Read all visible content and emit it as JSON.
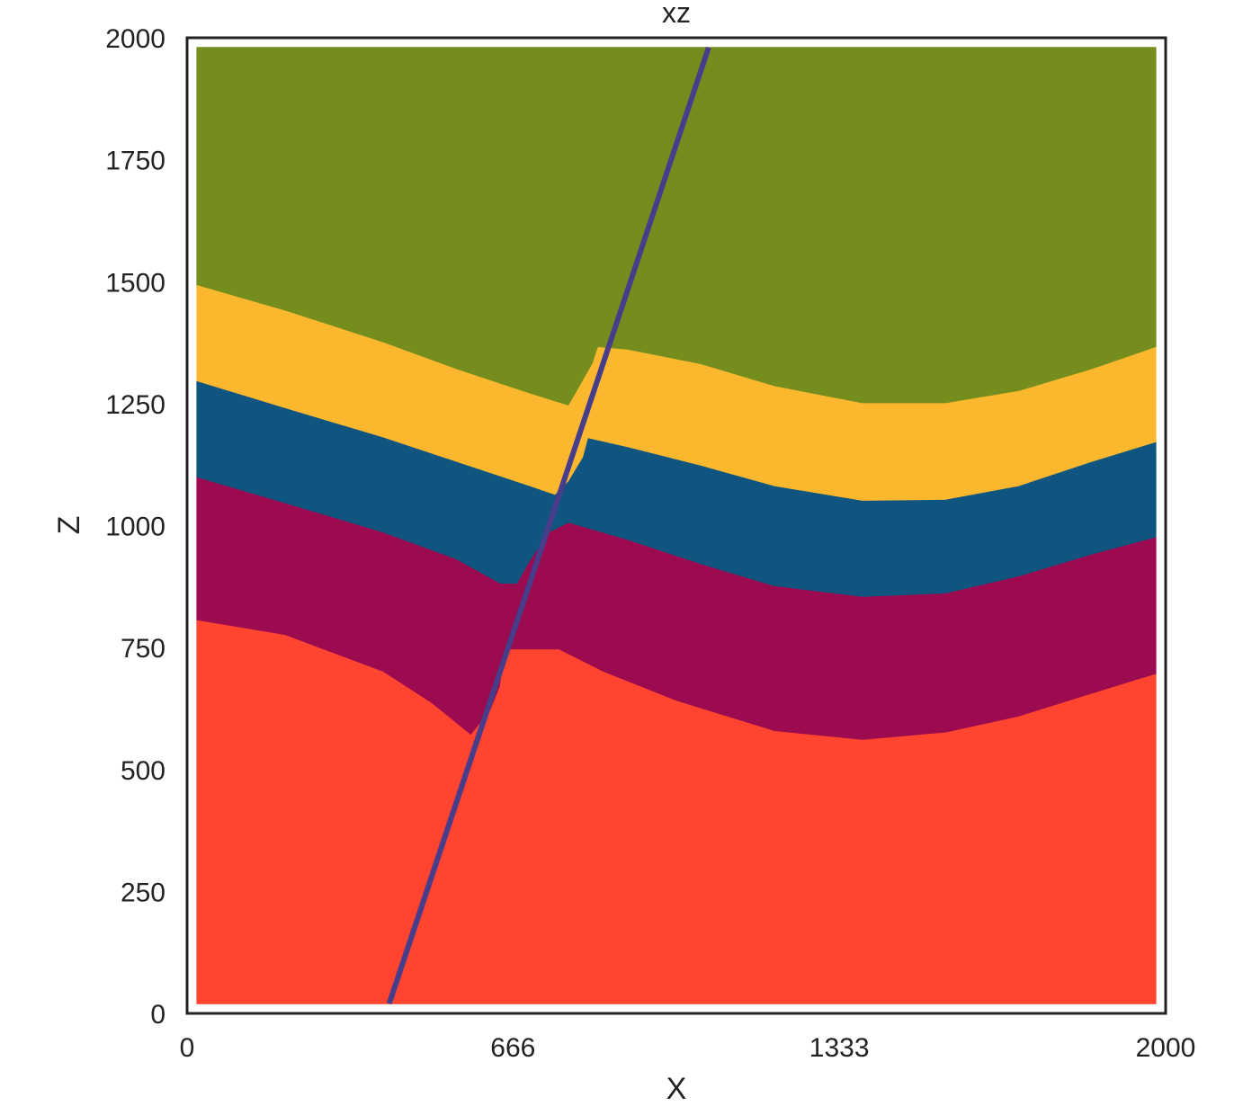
{
  "chart_data": {
    "type": "area",
    "title": "xz",
    "xlabel": "X",
    "ylabel": "Z",
    "xlim": [
      0,
      2000
    ],
    "ylim": [
      0,
      2000
    ],
    "xticks": [
      0,
      666,
      1333,
      2000
    ],
    "xtick_labels": [
      "0",
      "666",
      "1333",
      "2000"
    ],
    "yticks": [
      0,
      250,
      500,
      750,
      1000,
      1250,
      1500,
      1750,
      2000
    ],
    "ytick_labels": [
      "0",
      "250",
      "500",
      "750",
      "1000",
      "1250",
      "1500",
      "1750",
      "2000"
    ],
    "grid": false,
    "layers": [
      {
        "color": "#758d1d",
        "polygon": [
          [
            20,
            1980
          ],
          [
            1980,
            1980
          ],
          [
            1980,
            1365
          ],
          [
            1850,
            1320
          ],
          [
            1700,
            1275
          ],
          [
            1550,
            1250
          ],
          [
            1380,
            1250
          ],
          [
            1200,
            1285
          ],
          [
            1050,
            1330
          ],
          [
            900,
            1360
          ],
          [
            840,
            1365
          ],
          [
            830,
            1333
          ],
          [
            800,
            1280
          ],
          [
            780,
            1245
          ],
          [
            700,
            1270
          ],
          [
            550,
            1320
          ],
          [
            400,
            1375
          ],
          [
            200,
            1440
          ],
          [
            20,
            1492
          ]
        ]
      },
      {
        "color": "#fbb82f",
        "polygon": [
          [
            20,
            1492
          ],
          [
            200,
            1440
          ],
          [
            400,
            1375
          ],
          [
            550,
            1320
          ],
          [
            700,
            1270
          ],
          [
            780,
            1245
          ],
          [
            800,
            1280
          ],
          [
            830,
            1333
          ],
          [
            840,
            1365
          ],
          [
            900,
            1360
          ],
          [
            1050,
            1330
          ],
          [
            1200,
            1285
          ],
          [
            1380,
            1250
          ],
          [
            1550,
            1250
          ],
          [
            1700,
            1275
          ],
          [
            1850,
            1320
          ],
          [
            1980,
            1365
          ],
          [
            1980,
            1170
          ],
          [
            1850,
            1130
          ],
          [
            1700,
            1080
          ],
          [
            1550,
            1052
          ],
          [
            1380,
            1050
          ],
          [
            1200,
            1080
          ],
          [
            1050,
            1122
          ],
          [
            900,
            1160
          ],
          [
            820,
            1178
          ],
          [
            810,
            1140
          ],
          [
            780,
            1090
          ],
          [
            752,
            1062
          ],
          [
            700,
            1080
          ],
          [
            550,
            1130
          ],
          [
            400,
            1180
          ],
          [
            200,
            1240
          ],
          [
            20,
            1295
          ]
        ]
      },
      {
        "color": "#0f5580",
        "polygon": [
          [
            20,
            1295
          ],
          [
            200,
            1240
          ],
          [
            400,
            1180
          ],
          [
            550,
            1130
          ],
          [
            700,
            1080
          ],
          [
            752,
            1062
          ],
          [
            780,
            1090
          ],
          [
            810,
            1140
          ],
          [
            820,
            1178
          ],
          [
            900,
            1160
          ],
          [
            1050,
            1122
          ],
          [
            1200,
            1080
          ],
          [
            1380,
            1050
          ],
          [
            1550,
            1052
          ],
          [
            1700,
            1080
          ],
          [
            1850,
            1130
          ],
          [
            1980,
            1170
          ],
          [
            1980,
            975
          ],
          [
            1850,
            940
          ],
          [
            1700,
            895
          ],
          [
            1550,
            860
          ],
          [
            1380,
            853
          ],
          [
            1200,
            875
          ],
          [
            1050,
            920
          ],
          [
            900,
            970
          ],
          [
            780,
            1005
          ],
          [
            740,
            985
          ],
          [
            700,
            925
          ],
          [
            675,
            880
          ],
          [
            640,
            880
          ],
          [
            550,
            930
          ],
          [
            400,
            985
          ],
          [
            200,
            1045
          ],
          [
            20,
            1098
          ]
        ]
      },
      {
        "color": "#9c0a50",
        "polygon": [
          [
            20,
            1098
          ],
          [
            200,
            1045
          ],
          [
            400,
            985
          ],
          [
            550,
            930
          ],
          [
            640,
            880
          ],
          [
            675,
            880
          ],
          [
            700,
            925
          ],
          [
            740,
            985
          ],
          [
            780,
            1005
          ],
          [
            900,
            970
          ],
          [
            1050,
            920
          ],
          [
            1200,
            875
          ],
          [
            1380,
            853
          ],
          [
            1550,
            860
          ],
          [
            1700,
            895
          ],
          [
            1850,
            940
          ],
          [
            1980,
            975
          ],
          [
            1980,
            695
          ],
          [
            1850,
            655
          ],
          [
            1700,
            608
          ],
          [
            1550,
            575
          ],
          [
            1380,
            560
          ],
          [
            1200,
            578
          ],
          [
            1000,
            640
          ],
          [
            850,
            700
          ],
          [
            760,
            745
          ],
          [
            700,
            745
          ],
          [
            650,
            745
          ],
          [
            640,
            670
          ],
          [
            620,
            620
          ],
          [
            580,
            570
          ],
          [
            500,
            635
          ],
          [
            400,
            700
          ],
          [
            200,
            775
          ],
          [
            20,
            805
          ]
        ]
      },
      {
        "color": "#ff4430",
        "polygon": [
          [
            20,
            805
          ],
          [
            200,
            775
          ],
          [
            400,
            700
          ],
          [
            500,
            635
          ],
          [
            580,
            570
          ],
          [
            620,
            620
          ],
          [
            640,
            670
          ],
          [
            650,
            745
          ],
          [
            700,
            745
          ],
          [
            760,
            745
          ],
          [
            850,
            700
          ],
          [
            1000,
            640
          ],
          [
            1200,
            578
          ],
          [
            1380,
            560
          ],
          [
            1550,
            575
          ],
          [
            1700,
            608
          ],
          [
            1850,
            655
          ],
          [
            1980,
            695
          ],
          [
            1980,
            20
          ],
          [
            20,
            20
          ]
        ]
      }
    ],
    "fault": {
      "color": "#483d8b",
      "points": [
        [
          413,
          20
        ],
        [
          1066,
          1980
        ]
      ]
    }
  }
}
